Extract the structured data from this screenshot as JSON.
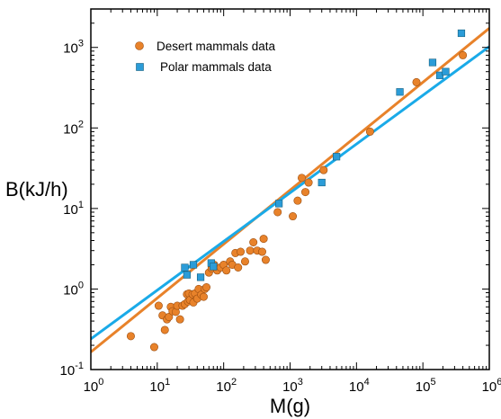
{
  "chart_data": {
    "type": "scatter",
    "xlabel": "M(g)",
    "ylabel": "B(kJ/h)",
    "xscale": "log",
    "yscale": "log",
    "xlim": [
      1,
      1000000
    ],
    "ylim": [
      0.1,
      3000
    ],
    "x_ticks": [
      {
        "value": 1,
        "base": "10",
        "exp": "0"
      },
      {
        "value": 10,
        "base": "10",
        "exp": "1"
      },
      {
        "value": 100,
        "base": "10",
        "exp": "2"
      },
      {
        "value": 1000,
        "base": "10",
        "exp": "3"
      },
      {
        "value": 10000,
        "base": "10",
        "exp": "4"
      },
      {
        "value": 100000,
        "base": "10",
        "exp": "5"
      },
      {
        "value": 1000000,
        "base": "10",
        "exp": "6"
      }
    ],
    "y_ticks": [
      {
        "value": 0.1,
        "base": "10",
        "exp": "-1"
      },
      {
        "value": 1,
        "base": "10",
        "exp": "0"
      },
      {
        "value": 10,
        "base": "10",
        "exp": "1"
      },
      {
        "value": 100,
        "base": "10",
        "exp": "2"
      },
      {
        "value": 1000,
        "base": "10",
        "exp": "3"
      }
    ],
    "legend_position": "top-left",
    "grid": false,
    "series": [
      {
        "name": "Desert mammals data",
        "marker": "circle",
        "color": "#E8822A",
        "points": [
          [
            4,
            0.26
          ],
          [
            9,
            0.19
          ],
          [
            10.5,
            0.62
          ],
          [
            12,
            0.47
          ],
          [
            13,
            0.31
          ],
          [
            14,
            0.42
          ],
          [
            15,
            0.45
          ],
          [
            16,
            0.6
          ],
          [
            17,
            0.53
          ],
          [
            19,
            0.52
          ],
          [
            20,
            0.62
          ],
          [
            22,
            0.42
          ],
          [
            24,
            0.62
          ],
          [
            26,
            0.65
          ],
          [
            28,
            0.86
          ],
          [
            29,
            0.7
          ],
          [
            30,
            0.88
          ],
          [
            31,
            0.73
          ],
          [
            34,
            0.86
          ],
          [
            35,
            0.68
          ],
          [
            37,
            0.88
          ],
          [
            40,
            0.76
          ],
          [
            42,
            1.0
          ],
          [
            46,
            0.85
          ],
          [
            50,
            0.8
          ],
          [
            52,
            1.0
          ],
          [
            55,
            1.05
          ],
          [
            60,
            1.6
          ],
          [
            66,
            1.8
          ],
          [
            72,
            2.0
          ],
          [
            80,
            1.7
          ],
          [
            90,
            1.85
          ],
          [
            100,
            2.0
          ],
          [
            110,
            1.7
          ],
          [
            125,
            2.2
          ],
          [
            135,
            2.0
          ],
          [
            150,
            2.8
          ],
          [
            165,
            1.85
          ],
          [
            180,
            2.9
          ],
          [
            210,
            2.2
          ],
          [
            250,
            3.0
          ],
          [
            280,
            3.8
          ],
          [
            320,
            3.0
          ],
          [
            380,
            2.9
          ],
          [
            400,
            4.2
          ],
          [
            430,
            2.3
          ],
          [
            650,
            9.0
          ],
          [
            1100,
            8.0
          ],
          [
            1300,
            12.5
          ],
          [
            1500,
            24
          ],
          [
            1700,
            16
          ],
          [
            1900,
            21
          ],
          [
            3200,
            30
          ],
          [
            16000,
            90
          ],
          [
            80000,
            370
          ],
          [
            400000,
            800
          ]
        ]
      },
      {
        "name": "Polar mammals data",
        "marker": "square",
        "color": "#2B9CD8",
        "points": [
          [
            26,
            1.85
          ],
          [
            28,
            1.5
          ],
          [
            35,
            2.0
          ],
          [
            45,
            1.4
          ],
          [
            65,
            2.1
          ],
          [
            70,
            1.9
          ],
          [
            680,
            11.5
          ],
          [
            3000,
            21
          ],
          [
            5000,
            44
          ],
          [
            45000,
            280
          ],
          [
            140000,
            650
          ],
          [
            180000,
            450
          ],
          [
            220000,
            500
          ],
          [
            380000,
            1500
          ]
        ]
      }
    ],
    "fit_lines": [
      {
        "series": "Desert mammals data",
        "color": "#E8822A",
        "coefficient": 0.165,
        "exponent": 0.67
      },
      {
        "series": "Polar mammals data",
        "color": "#1AAAE8",
        "coefficient": 0.24,
        "exponent": 0.605
      }
    ]
  }
}
